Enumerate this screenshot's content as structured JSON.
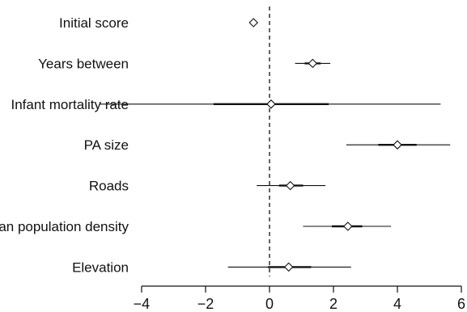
{
  "chart_data": {
    "type": "scatter",
    "variant": "coefficient-plot",
    "title": "",
    "xlabel": "",
    "ylabel": "",
    "xlim": [
      -4.1,
      6.1
    ],
    "x_ticks": [
      -4,
      -2,
      0,
      2,
      4,
      6
    ],
    "x_tick_labels": [
      "−4",
      "−2",
      "0",
      "2",
      "4",
      "6"
    ],
    "reference_line": 0,
    "reference_line_style": "dashed",
    "grid": false,
    "legend": "none",
    "colors": {
      "ink": "#111111",
      "background": "#ffffff"
    },
    "marker": "diamond-open",
    "series": [
      {
        "name": "Initial score",
        "estimate": -0.5,
        "interval_inner": [
          -0.55,
          -0.45
        ],
        "interval_outer": [
          -0.6,
          -0.4
        ]
      },
      {
        "name": "Years between",
        "estimate": 1.35,
        "interval_inner": [
          1.1,
          1.6
        ],
        "interval_outer": [
          0.8,
          1.9
        ]
      },
      {
        "name": "Infant mortality rate",
        "estimate": 0.05,
        "interval_inner": [
          -1.75,
          1.85
        ],
        "interval_outer": [
          -5.3,
          5.35
        ]
      },
      {
        "name": "PA size",
        "estimate": 4.0,
        "interval_inner": [
          3.4,
          4.6
        ],
        "interval_outer": [
          2.4,
          5.65
        ]
      },
      {
        "name": "Roads",
        "estimate": 0.65,
        "interval_inner": [
          0.3,
          1.05
        ],
        "interval_outer": [
          -0.4,
          1.75
        ]
      },
      {
        "name": "Urban population density",
        "estimate": 2.45,
        "interval_inner": [
          1.95,
          2.9
        ],
        "interval_outer": [
          1.05,
          3.8
        ]
      },
      {
        "name": "Elevation",
        "estimate": 0.6,
        "interval_inner": [
          -0.05,
          1.3
        ],
        "interval_outer": [
          -1.3,
          2.55
        ]
      }
    ]
  }
}
